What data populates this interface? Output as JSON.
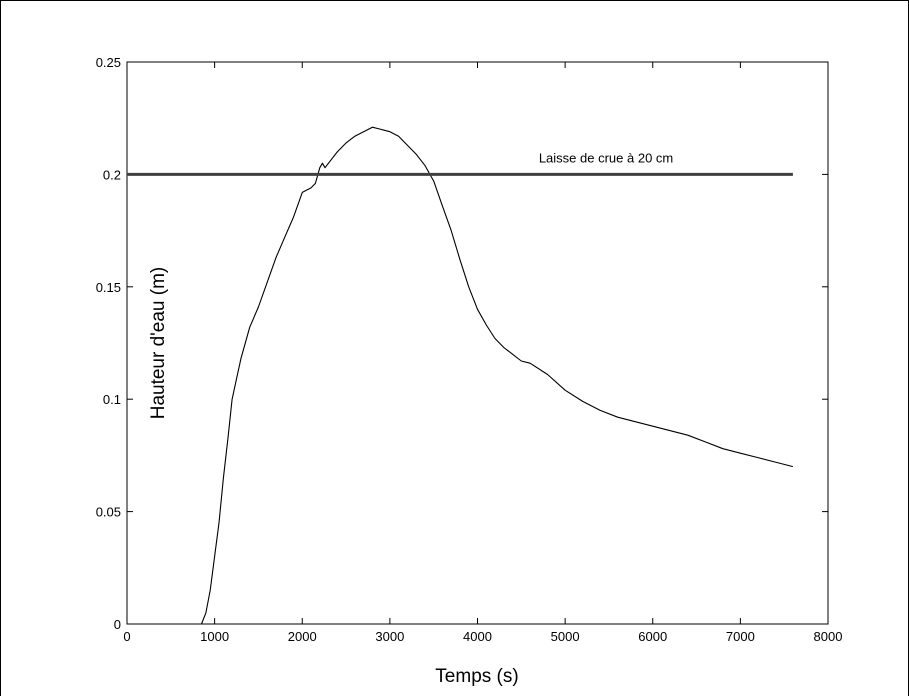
{
  "chart_data": {
    "type": "line",
    "title": "",
    "xlabel": "Temps (s)",
    "ylabel": "Hauteur d'eau (m)",
    "xlim": [
      0,
      8000
    ],
    "ylim": [
      0,
      0.25
    ],
    "xticks": [
      0,
      1000,
      2000,
      3000,
      4000,
      5000,
      6000,
      7000,
      8000
    ],
    "yticks": [
      0,
      0.05,
      0.1,
      0.15,
      0.2,
      0.25
    ],
    "xtick_labels": [
      "0",
      "1000",
      "2000",
      "3000",
      "4000",
      "5000",
      "6000",
      "7000",
      "8000"
    ],
    "ytick_labels": [
      "0",
      "0.05",
      "0.1",
      "0.15",
      "0.2",
      "0.25"
    ],
    "grid": false,
    "legend": "none",
    "series": [
      {
        "color": "#000000",
        "x": [
          850,
          900,
          950,
          1000,
          1050,
          1100,
          1150,
          1200,
          1300,
          1400,
          1500,
          1600,
          1700,
          1800,
          1900,
          2000,
          2050,
          2100,
          2150,
          2200,
          2230,
          2260,
          2300,
          2400,
          2500,
          2600,
          2700,
          2800,
          2900,
          3000,
          3100,
          3200,
          3300,
          3400,
          3500,
          3600,
          3700,
          3800,
          3900,
          4000,
          4100,
          4200,
          4300,
          4400,
          4500,
          4600,
          4800,
          5000,
          5200,
          5400,
          5600,
          5800,
          6000,
          6200,
          6400,
          6600,
          6800,
          7000,
          7200,
          7400,
          7600
        ],
        "y": [
          0.0,
          0.005,
          0.015,
          0.03,
          0.045,
          0.065,
          0.082,
          0.1,
          0.118,
          0.132,
          0.141,
          0.152,
          0.163,
          0.172,
          0.181,
          0.192,
          0.193,
          0.194,
          0.196,
          0.203,
          0.205,
          0.203,
          0.205,
          0.21,
          0.214,
          0.217,
          0.219,
          0.221,
          0.22,
          0.219,
          0.217,
          0.213,
          0.209,
          0.204,
          0.197,
          0.186,
          0.175,
          0.162,
          0.15,
          0.14,
          0.133,
          0.127,
          0.123,
          0.12,
          0.117,
          0.116,
          0.111,
          0.104,
          0.099,
          0.095,
          0.092,
          0.09,
          0.088,
          0.086,
          0.084,
          0.081,
          0.078,
          0.076,
          0.074,
          0.072,
          0.07
        ]
      },
      {
        "color": "#404040",
        "x": [
          0,
          7600
        ],
        "y": [
          0.2,
          0.2
        ]
      }
    ],
    "annotations": [
      {
        "text": "Laisse de crue à 20 cm",
        "x": 4700,
        "y": 0.2053
      }
    ]
  }
}
